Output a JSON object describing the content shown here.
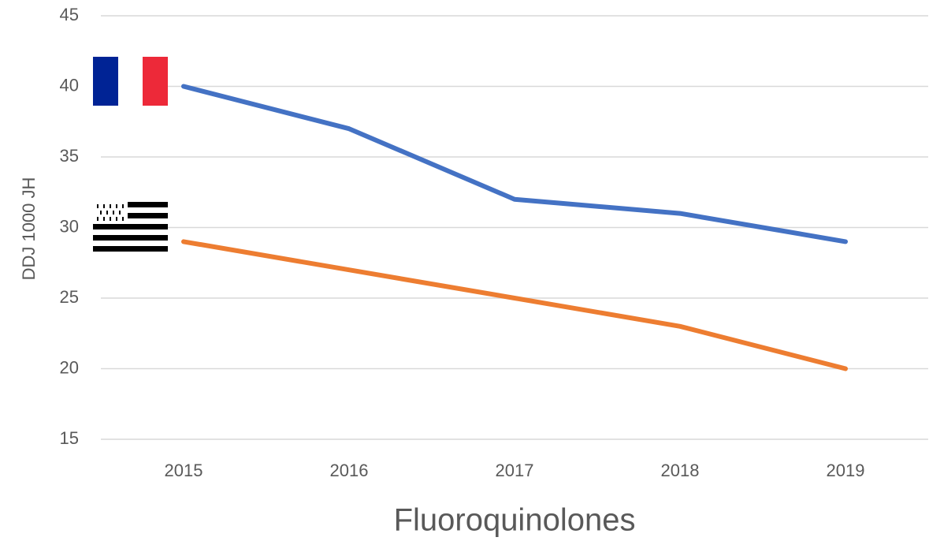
{
  "chart_data": {
    "type": "line",
    "title": "Fluoroquinolones",
    "y_label": "DDJ  1000 JH",
    "categories": [
      "2015",
      "2016",
      "2017",
      "2018",
      "2019"
    ],
    "series": [
      {
        "color": "#4472c4",
        "values": [
          40,
          37,
          32,
          31,
          29
        ]
      },
      {
        "color": "#ed7d31",
        "values": [
          29,
          27,
          25,
          23,
          20
        ]
      }
    ],
    "ylim": [
      15,
      45
    ],
    "yticks": [
      15,
      20,
      25,
      30,
      35,
      40,
      45
    ],
    "grid": true
  }
}
